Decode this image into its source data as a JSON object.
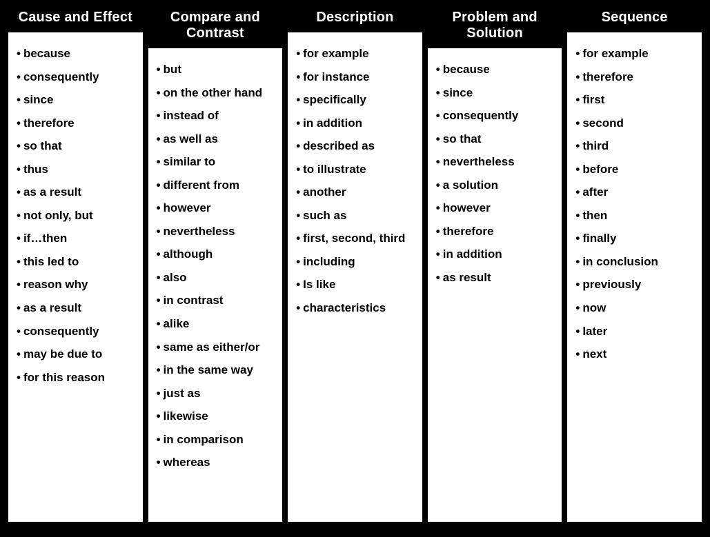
{
  "type": "table",
  "background_color": "#000000",
  "panel_color": "#ffffff",
  "header_text_color": "#ffffff",
  "item_text_color": "#000000",
  "header_fontsize": 20,
  "item_fontsize": 17,
  "font_weight": 700,
  "bullet_char": "•",
  "columns": [
    {
      "title": "Cause and Effect",
      "items": [
        "because",
        "consequently",
        "since",
        "therefore",
        "so that",
        "thus",
        "as a result",
        "not only, but",
        "if…then",
        "this led to",
        "reason why",
        "as a result",
        "consequently",
        "may be due to",
        "for this reason"
      ]
    },
    {
      "title": "Compare and Contrast",
      "items": [
        "but",
        "on the other hand",
        "instead of",
        "as well as",
        "similar to",
        "different from",
        "however",
        "nevertheless",
        "although",
        "also",
        "in contrast",
        "alike",
        "same as either/or",
        "in the same way",
        "just as",
        "likewise",
        "in comparison",
        "whereas"
      ]
    },
    {
      "title": "Description",
      "items": [
        "for example",
        "for instance",
        "specifically",
        "in addition",
        "described as",
        "to illustrate",
        "another",
        "such as",
        "first, second, third",
        "including",
        "Is like",
        "characteristics"
      ]
    },
    {
      "title": "Problem and Solution",
      "items": [
        "because",
        "since",
        "consequently",
        "so that",
        "nevertheless",
        "a solution",
        "however",
        "therefore",
        "in addition",
        "as result"
      ]
    },
    {
      "title": "Sequence",
      "items": [
        "for example",
        "therefore",
        "first",
        "second",
        "third",
        "before",
        "after",
        "then",
        "finally",
        "in conclusion",
        "previously",
        "now",
        "later",
        "next"
      ]
    }
  ]
}
